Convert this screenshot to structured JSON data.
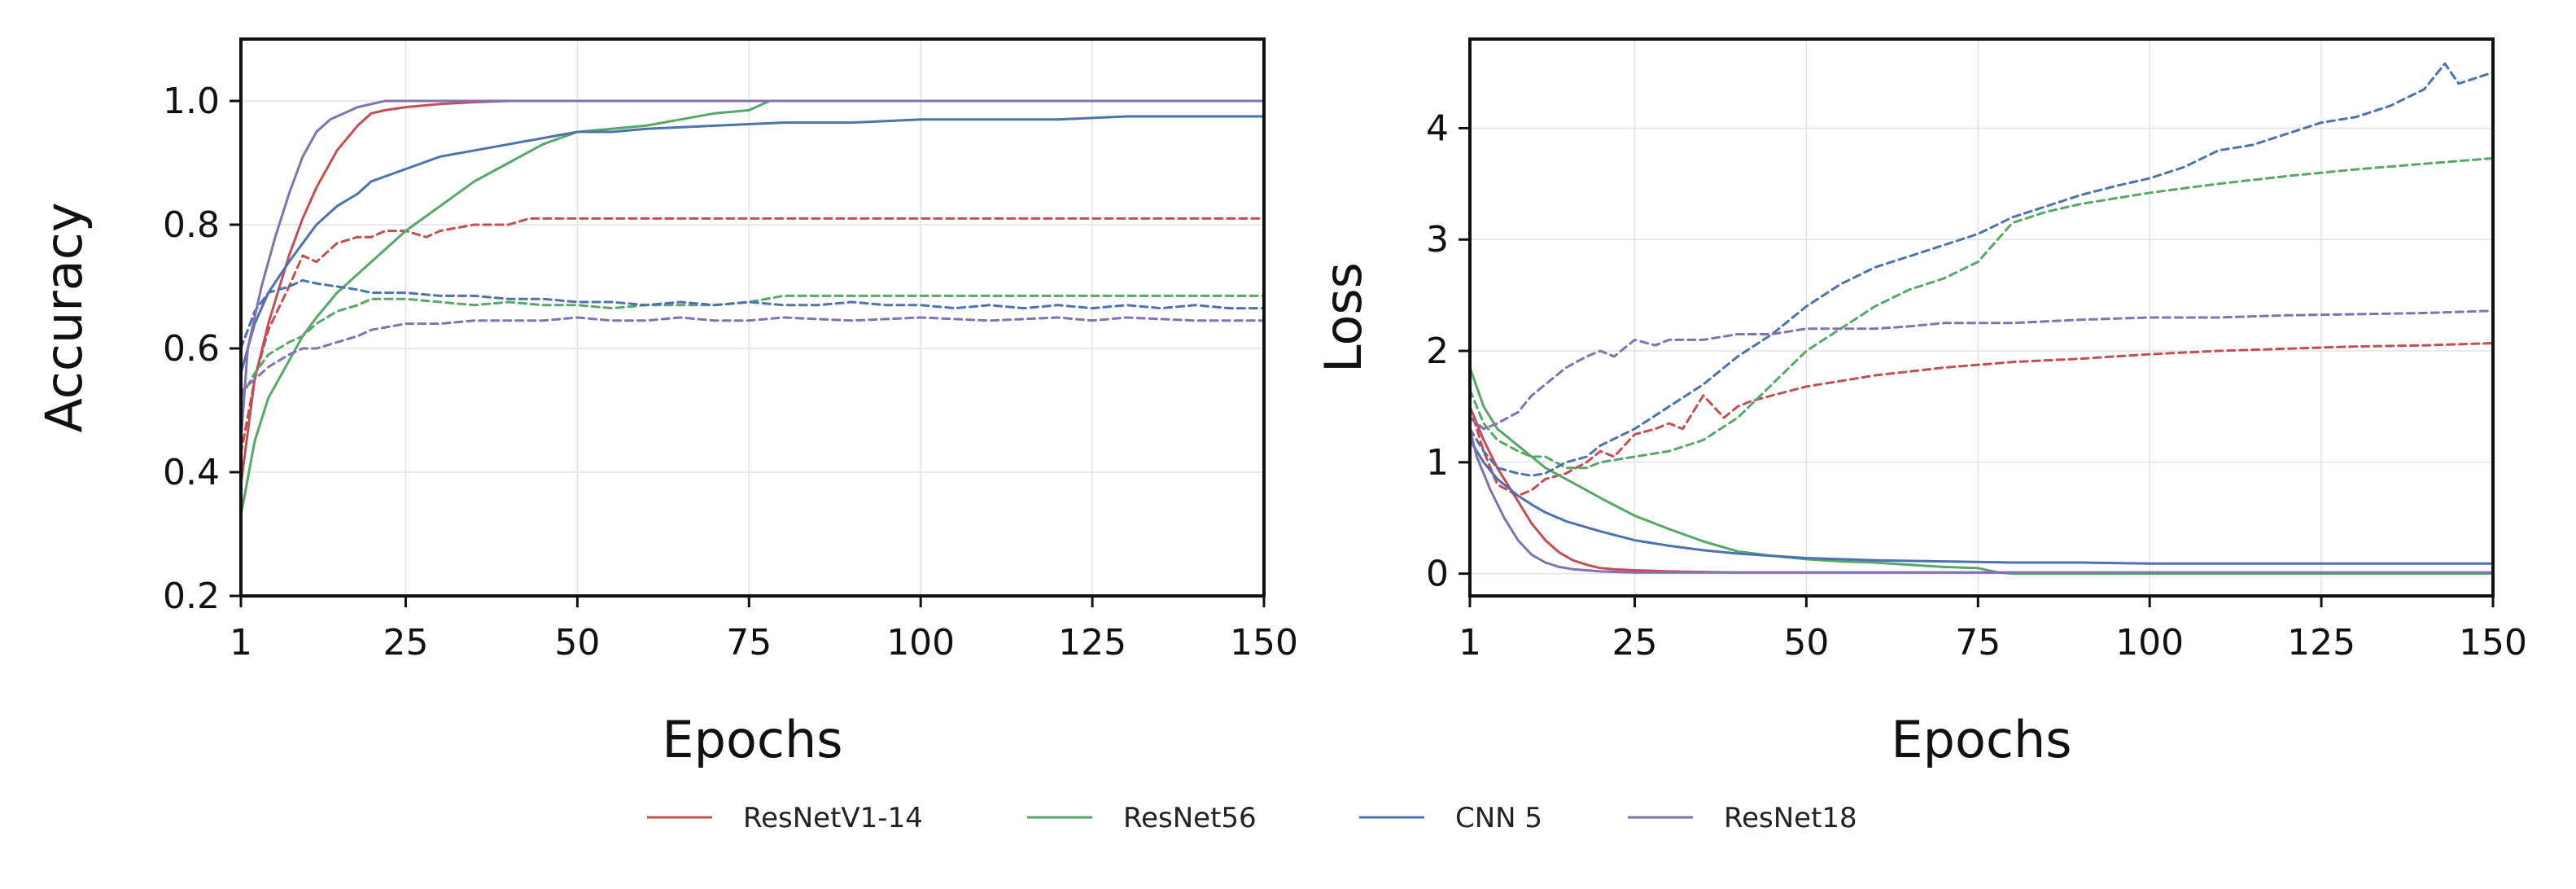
{
  "colors": {
    "ResNetV1-14": "#c44e52",
    "ResNet56": "#55a868",
    "CNN 5": "#4c72b0",
    "ResNet18": "#8172b2"
  },
  "line_styles": {
    "train": "solid",
    "test": "dashed"
  },
  "chart_data": [
    {
      "type": "line",
      "xlabel": "Epochs",
      "ylabel": "Accuracy",
      "xlim": [
        1,
        150
      ],
      "ylim": [
        0.2,
        1.1
      ],
      "xticks": [
        1,
        25,
        50,
        75,
        100,
        125,
        150
      ],
      "yticks": [
        0.2,
        0.4,
        0.6,
        0.8,
        1.0
      ],
      "ytick_labels": [
        "0.2",
        "0.4",
        "0.6",
        "0.8",
        "1.0"
      ],
      "grid": true,
      "series": [
        {
          "name": "ResNetV1-14",
          "split": "train",
          "x": [
            1,
            3,
            5,
            8,
            10,
            12,
            15,
            18,
            20,
            22,
            25,
            30,
            35,
            40,
            45,
            50,
            75,
            100,
            125,
            150
          ],
          "y": [
            0.38,
            0.55,
            0.64,
            0.75,
            0.81,
            0.86,
            0.92,
            0.96,
            0.98,
            0.985,
            0.99,
            0.995,
            0.998,
            1.0,
            1.0,
            1.0,
            1.0,
            1.0,
            1.0,
            1.0
          ]
        },
        {
          "name": "ResNetV1-14",
          "split": "test",
          "x": [
            1,
            3,
            5,
            8,
            10,
            12,
            15,
            18,
            20,
            22,
            25,
            28,
            30,
            35,
            40,
            43,
            50,
            75,
            100,
            125,
            150
          ],
          "y": [
            0.43,
            0.55,
            0.63,
            0.7,
            0.75,
            0.74,
            0.77,
            0.78,
            0.78,
            0.79,
            0.79,
            0.78,
            0.79,
            0.8,
            0.8,
            0.81,
            0.81,
            0.81,
            0.81,
            0.81,
            0.81
          ]
        },
        {
          "name": "ResNet56",
          "split": "train",
          "x": [
            1,
            3,
            5,
            8,
            10,
            12,
            15,
            20,
            25,
            30,
            35,
            40,
            45,
            50,
            55,
            60,
            65,
            70,
            75,
            78,
            80,
            100,
            125,
            150
          ],
          "y": [
            0.33,
            0.45,
            0.52,
            0.58,
            0.62,
            0.65,
            0.69,
            0.74,
            0.79,
            0.83,
            0.87,
            0.9,
            0.93,
            0.95,
            0.955,
            0.96,
            0.97,
            0.98,
            0.985,
            1.0,
            1.0,
            1.0,
            1.0,
            1.0
          ]
        },
        {
          "name": "ResNet56",
          "split": "test",
          "x": [
            1,
            3,
            5,
            8,
            10,
            12,
            15,
            18,
            20,
            25,
            30,
            35,
            40,
            45,
            50,
            55,
            60,
            65,
            70,
            75,
            80,
            100,
            125,
            150
          ],
          "y": [
            0.52,
            0.56,
            0.59,
            0.61,
            0.62,
            0.64,
            0.66,
            0.67,
            0.68,
            0.68,
            0.675,
            0.67,
            0.675,
            0.67,
            0.67,
            0.665,
            0.67,
            0.67,
            0.67,
            0.675,
            0.685,
            0.685,
            0.685,
            0.685
          ]
        },
        {
          "name": "CNN 5",
          "split": "train",
          "x": [
            1,
            3,
            5,
            8,
            10,
            12,
            15,
            18,
            20,
            25,
            30,
            35,
            40,
            45,
            50,
            55,
            60,
            70,
            80,
            90,
            100,
            110,
            120,
            130,
            140,
            150
          ],
          "y": [
            0.56,
            0.64,
            0.69,
            0.74,
            0.77,
            0.8,
            0.83,
            0.85,
            0.87,
            0.89,
            0.91,
            0.92,
            0.93,
            0.94,
            0.95,
            0.95,
            0.955,
            0.96,
            0.965,
            0.965,
            0.97,
            0.97,
            0.97,
            0.975,
            0.975,
            0.975
          ]
        },
        {
          "name": "CNN 5",
          "split": "test",
          "x": [
            1,
            3,
            5,
            8,
            10,
            12,
            15,
            18,
            20,
            25,
            30,
            35,
            40,
            45,
            50,
            55,
            60,
            65,
            70,
            75,
            80,
            85,
            90,
            95,
            100,
            105,
            110,
            115,
            120,
            125,
            130,
            135,
            140,
            145,
            150
          ],
          "y": [
            0.6,
            0.66,
            0.69,
            0.7,
            0.71,
            0.705,
            0.7,
            0.695,
            0.69,
            0.69,
            0.685,
            0.685,
            0.68,
            0.68,
            0.675,
            0.675,
            0.67,
            0.675,
            0.67,
            0.675,
            0.67,
            0.67,
            0.675,
            0.67,
            0.67,
            0.665,
            0.67,
            0.665,
            0.67,
            0.665,
            0.67,
            0.665,
            0.67,
            0.665,
            0.665
          ]
        },
        {
          "name": "ResNet18",
          "split": "train",
          "x": [
            1,
            2,
            4,
            6,
            8,
            10,
            12,
            14,
            16,
            18,
            20,
            22,
            25,
            30,
            40,
            50,
            75,
            100,
            125,
            150
          ],
          "y": [
            0.45,
            0.6,
            0.7,
            0.78,
            0.85,
            0.91,
            0.95,
            0.97,
            0.98,
            0.99,
            0.995,
            1.0,
            1.0,
            1.0,
            1.0,
            1.0,
            1.0,
            1.0,
            1.0,
            1.0
          ]
        },
        {
          "name": "ResNet18",
          "split": "test",
          "x": [
            1,
            3,
            5,
            8,
            10,
            12,
            15,
            18,
            20,
            25,
            30,
            35,
            40,
            45,
            50,
            55,
            60,
            65,
            70,
            75,
            80,
            90,
            100,
            110,
            120,
            125,
            130,
            140,
            150
          ],
          "y": [
            0.53,
            0.55,
            0.57,
            0.59,
            0.6,
            0.6,
            0.61,
            0.62,
            0.63,
            0.64,
            0.64,
            0.645,
            0.645,
            0.645,
            0.65,
            0.645,
            0.645,
            0.65,
            0.645,
            0.645,
            0.65,
            0.645,
            0.65,
            0.645,
            0.65,
            0.645,
            0.65,
            0.645,
            0.645
          ]
        }
      ]
    },
    {
      "type": "line",
      "xlabel": "Epochs",
      "ylabel": "Loss",
      "xlim": [
        1,
        150
      ],
      "ylim": [
        -0.2,
        4.8
      ],
      "xticks": [
        1,
        25,
        50,
        75,
        100,
        125,
        150
      ],
      "yticks": [
        0,
        1,
        2,
        3,
        4
      ],
      "ytick_labels": [
        "0",
        "1",
        "2",
        "3",
        "4"
      ],
      "grid": true,
      "series": [
        {
          "name": "ResNetV1-14",
          "split": "train",
          "x": [
            1,
            3,
            5,
            8,
            10,
            12,
            14,
            16,
            18,
            20,
            22,
            25,
            30,
            35,
            40,
            50,
            75,
            100,
            125,
            150
          ],
          "y": [
            1.5,
            1.2,
            0.95,
            0.65,
            0.45,
            0.3,
            0.19,
            0.12,
            0.08,
            0.05,
            0.04,
            0.03,
            0.02,
            0.015,
            0.01,
            0.01,
            0.01,
            0.01,
            0.01,
            0.01
          ]
        },
        {
          "name": "ResNetV1-14",
          "split": "test",
          "x": [
            1,
            3,
            5,
            8,
            10,
            12,
            15,
            18,
            20,
            22,
            25,
            28,
            30,
            32,
            35,
            38,
            40,
            42,
            45,
            50,
            55,
            60,
            70,
            80,
            90,
            100,
            110,
            120,
            130,
            140,
            150
          ],
          "y": [
            1.5,
            1.1,
            0.8,
            0.7,
            0.75,
            0.85,
            0.9,
            1.0,
            1.1,
            1.05,
            1.25,
            1.3,
            1.35,
            1.3,
            1.6,
            1.4,
            1.5,
            1.55,
            1.6,
            1.68,
            1.73,
            1.78,
            1.85,
            1.9,
            1.93,
            1.97,
            2.0,
            2.02,
            2.04,
            2.05,
            2.07
          ]
        },
        {
          "name": "ResNet56",
          "split": "train",
          "x": [
            1,
            3,
            5,
            8,
            10,
            12,
            15,
            20,
            25,
            30,
            35,
            40,
            45,
            50,
            55,
            60,
            65,
            70,
            75,
            78,
            80,
            100,
            125,
            150
          ],
          "y": [
            1.85,
            1.5,
            1.3,
            1.15,
            1.05,
            0.95,
            0.85,
            0.68,
            0.52,
            0.4,
            0.29,
            0.2,
            0.16,
            0.13,
            0.11,
            0.1,
            0.08,
            0.06,
            0.05,
            0.01,
            0.0,
            0.0,
            0.0,
            0.0
          ]
        },
        {
          "name": "ResNet56",
          "split": "test",
          "x": [
            1,
            3,
            5,
            8,
            10,
            12,
            15,
            18,
            20,
            25,
            30,
            35,
            40,
            45,
            50,
            55,
            60,
            65,
            70,
            75,
            80,
            85,
            90,
            100,
            110,
            120,
            130,
            140,
            150
          ],
          "y": [
            1.65,
            1.35,
            1.2,
            1.1,
            1.05,
            1.05,
            0.95,
            0.95,
            1.0,
            1.05,
            1.1,
            1.2,
            1.4,
            1.7,
            2.0,
            2.2,
            2.4,
            2.55,
            2.65,
            2.8,
            3.15,
            3.25,
            3.32,
            3.42,
            3.5,
            3.57,
            3.63,
            3.68,
            3.73
          ]
        },
        {
          "name": "CNN 5",
          "split": "train",
          "x": [
            1,
            3,
            5,
            8,
            10,
            12,
            15,
            20,
            25,
            30,
            35,
            40,
            45,
            50,
            60,
            70,
            80,
            90,
            100,
            110,
            120,
            130,
            140,
            150
          ],
          "y": [
            1.2,
            1.0,
            0.85,
            0.7,
            0.62,
            0.55,
            0.47,
            0.38,
            0.3,
            0.25,
            0.21,
            0.18,
            0.16,
            0.14,
            0.12,
            0.11,
            0.1,
            0.1,
            0.09,
            0.09,
            0.09,
            0.09,
            0.09,
            0.09
          ]
        },
        {
          "name": "CNN 5",
          "split": "test",
          "x": [
            1,
            3,
            5,
            8,
            10,
            12,
            15,
            18,
            20,
            25,
            30,
            35,
            40,
            45,
            50,
            55,
            60,
            65,
            70,
            75,
            80,
            85,
            90,
            95,
            100,
            105,
            110,
            115,
            120,
            125,
            130,
            135,
            140,
            143,
            145,
            150
          ],
          "y": [
            1.3,
            1.1,
            0.95,
            0.9,
            0.88,
            0.9,
            1.0,
            1.05,
            1.15,
            1.3,
            1.5,
            1.7,
            1.95,
            2.15,
            2.4,
            2.6,
            2.75,
            2.85,
            2.95,
            3.05,
            3.2,
            3.3,
            3.4,
            3.48,
            3.55,
            3.65,
            3.8,
            3.85,
            3.95,
            4.05,
            4.1,
            4.2,
            4.35,
            4.58,
            4.4,
            4.5
          ]
        },
        {
          "name": "ResNet18",
          "split": "train",
          "x": [
            1,
            2,
            4,
            6,
            8,
            10,
            12,
            14,
            16,
            18,
            20,
            25,
            30,
            50,
            75,
            100,
            125,
            150
          ],
          "y": [
            1.3,
            1.05,
            0.75,
            0.5,
            0.3,
            0.17,
            0.1,
            0.06,
            0.04,
            0.03,
            0.02,
            0.01,
            0.01,
            0.01,
            0.01,
            0.01,
            0.01,
            0.01
          ]
        },
        {
          "name": "ResNet18",
          "split": "test",
          "x": [
            1,
            3,
            5,
            8,
            10,
            12,
            15,
            18,
            20,
            22,
            25,
            28,
            30,
            35,
            40,
            45,
            50,
            55,
            60,
            65,
            70,
            75,
            80,
            90,
            100,
            110,
            120,
            130,
            140,
            150
          ],
          "y": [
            1.4,
            1.3,
            1.35,
            1.45,
            1.6,
            1.7,
            1.85,
            1.95,
            2.0,
            1.95,
            2.1,
            2.05,
            2.1,
            2.1,
            2.15,
            2.15,
            2.2,
            2.2,
            2.2,
            2.22,
            2.25,
            2.25,
            2.25,
            2.28,
            2.3,
            2.3,
            2.32,
            2.33,
            2.34,
            2.36
          ]
        }
      ]
    }
  ],
  "legend": {
    "placement": "bottom-center",
    "entries": [
      "ResNetV1-14",
      "ResNet56",
      "CNN 5",
      "ResNet18"
    ]
  }
}
